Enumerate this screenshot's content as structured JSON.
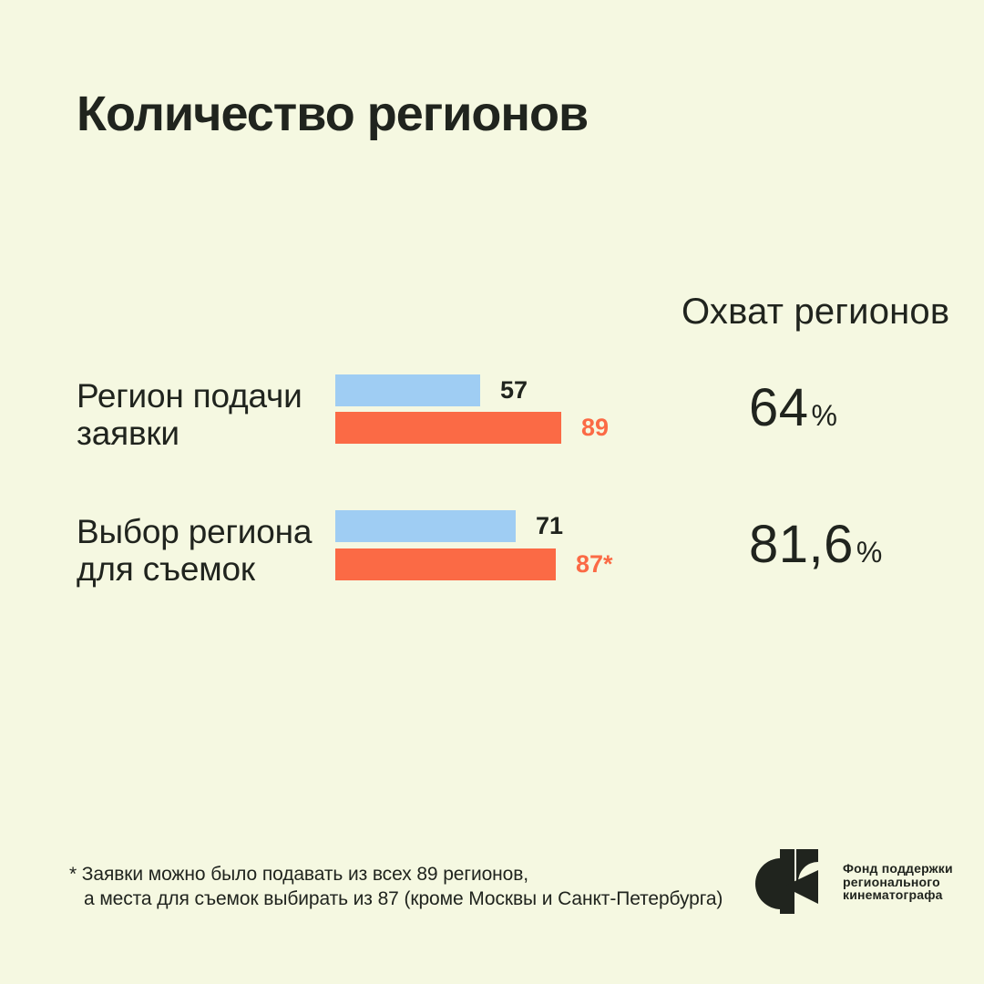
{
  "colors": {
    "background": "#F5F8E1",
    "text_dark": "#20241E",
    "bar_blue": "#9FCDF3",
    "bar_orange": "#FB6A45"
  },
  "title": "Количество регионов",
  "coverage_header": "Охват регионов",
  "chart_data": {
    "type": "bar",
    "orientation": "horizontal",
    "title": "Количество регионов",
    "axis_max": 89,
    "grid": false,
    "legend": false,
    "rows": [
      {
        "label": "Регион подачи заявки",
        "label_lines": [
          "Регион подачи",
          "заявки"
        ],
        "bars": [
          {
            "value": 57,
            "display": "57",
            "series_color": "#9FCDF3"
          },
          {
            "value": 89,
            "display": "89",
            "series_color": "#FB6A45"
          }
        ],
        "coverage_value": "64",
        "coverage_unit": "%"
      },
      {
        "label": "Выбор региона для съемок",
        "label_lines": [
          "Выбор региона",
          "для съемок"
        ],
        "bars": [
          {
            "value": 71,
            "display": "71",
            "series_color": "#9FCDF3"
          },
          {
            "value": 87,
            "display": "87*",
            "series_color": "#FB6A45"
          }
        ],
        "coverage_value": "81,6",
        "coverage_unit": "%"
      }
    ]
  },
  "footnote": {
    "lines": [
      "* Заявки можно было подавать из всех 89 регионов,",
      "а места для съемок выбирать из 87 (кроме Москвы и Санкт-Петербурга)"
    ]
  },
  "logo": {
    "text_lines": [
      "Фонд поддержки",
      "регионального",
      "кинематографа"
    ]
  }
}
